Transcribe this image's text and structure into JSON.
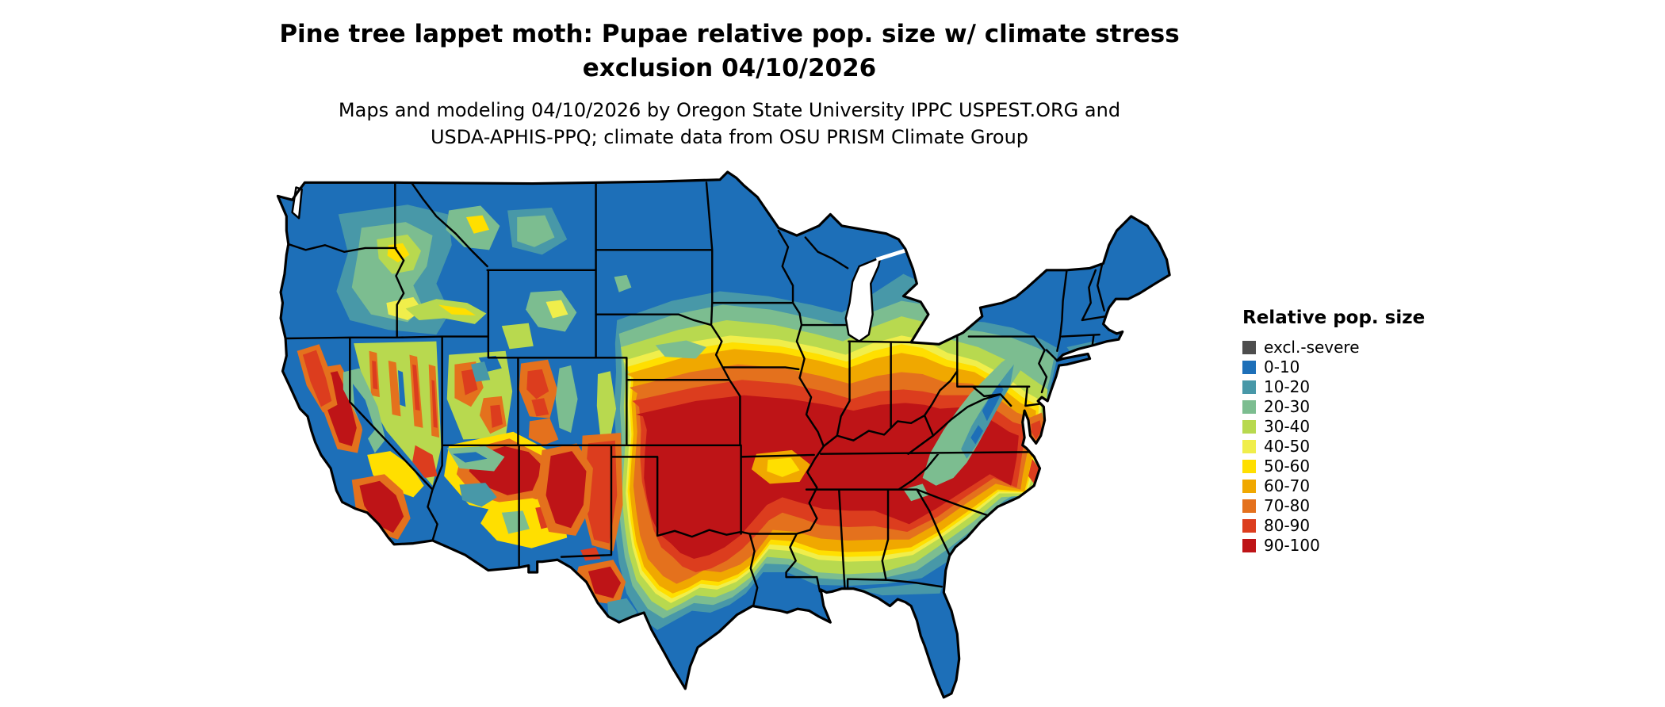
{
  "title": {
    "line1": "Pine tree lappet moth: Pupae relative pop. size w/ climate stress",
    "line2": "exclusion 04/10/2026"
  },
  "subtitle": {
    "line1": "Maps and modeling 04/10/2026 by Oregon State University IPPC USPEST.ORG and",
    "line2": "USDA-APHIS-PPQ; climate data from OSU PRISM Climate Group"
  },
  "map": {
    "region": "Continental United States",
    "variable": "Pupae relative population size with climate stress exclusion",
    "date": "04/10/2026"
  },
  "legend": {
    "title": "Relative pop. size",
    "items": [
      {
        "label": "excl.-severe",
        "color": "#4d4d4d"
      },
      {
        "label": "0-10",
        "color": "#1d6fb8"
      },
      {
        "label": "10-20",
        "color": "#4898a8"
      },
      {
        "label": "20-30",
        "color": "#7cbd90"
      },
      {
        "label": "30-40",
        "color": "#b8d94f"
      },
      {
        "label": "40-50",
        "color": "#f0ee4b"
      },
      {
        "label": "50-60",
        "color": "#ffdf00"
      },
      {
        "label": "60-70",
        "color": "#f0a800"
      },
      {
        "label": "70-80",
        "color": "#e4711d"
      },
      {
        "label": "80-90",
        "color": "#dc3d1e"
      },
      {
        "label": "90-100",
        "color": "#be1417"
      }
    ]
  }
}
